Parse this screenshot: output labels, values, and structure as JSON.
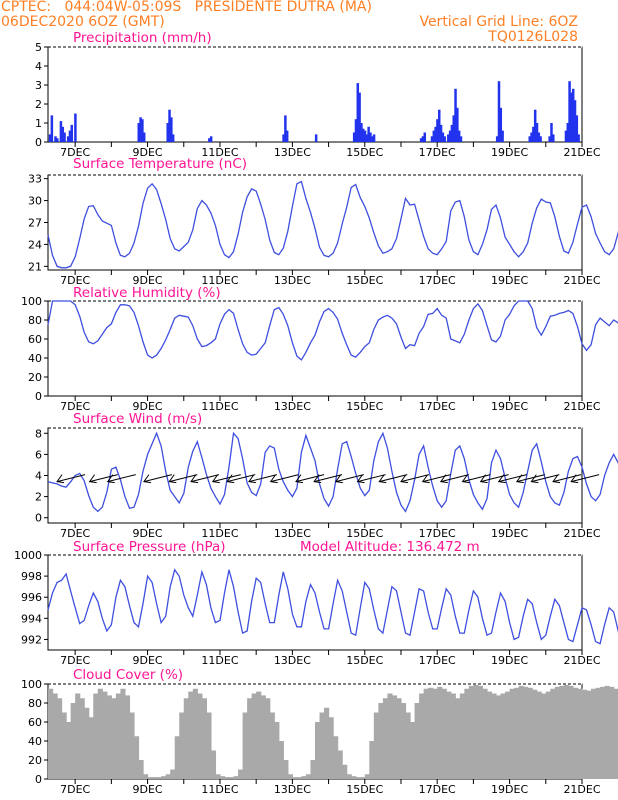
{
  "header": {
    "line1": "CPTEC:   044:04W-05:09S   PRESIDENTE DUTRA (MA)",
    "line2_left": "06DEC2020 6OZ (GMT)",
    "line2_right": "Vertical Grid Line: 6OZ",
    "line3_right": "TQ0126L028"
  },
  "colors": {
    "header": "#ff7f24",
    "title": "#ff1493",
    "line": "#3f4fdf",
    "bar": "#2233ee",
    "cloud": "#a9a9a9"
  },
  "x_labels": [
    "7DEC",
    "9DEC",
    "11DEC",
    "13DEC",
    "15DEC",
    "17DEC",
    "19DEC",
    "21DEC"
  ],
  "chart_data": [
    {
      "type": "bar",
      "title": "Precipitation (mm/h)",
      "ylim": [
        0,
        5
      ],
      "yticks": [
        0,
        1,
        2,
        3,
        4,
        5
      ],
      "x_range_days": [
        6.25,
        21.0
      ],
      "x": [
        6.3,
        6.35,
        6.45,
        6.5,
        6.6,
        6.65,
        6.7,
        6.8,
        6.85,
        6.9,
        7.0,
        8.75,
        8.8,
        8.85,
        8.9,
        9.55,
        9.6,
        9.65,
        9.7,
        10.7,
        10.75,
        12.75,
        12.8,
        12.85,
        13.65,
        14.7,
        14.75,
        14.8,
        14.85,
        14.9,
        14.95,
        15.0,
        15.05,
        15.1,
        15.15,
        15.2,
        15.25,
        16.55,
        16.6,
        16.65,
        16.85,
        16.9,
        16.95,
        17.0,
        17.05,
        17.1,
        17.15,
        17.2,
        17.3,
        17.35,
        17.4,
        17.45,
        17.5,
        17.55,
        17.6,
        17.65,
        18.65,
        18.7,
        18.75,
        18.8,
        19.55,
        19.6,
        19.65,
        19.7,
        19.75,
        19.8,
        19.85,
        20.1,
        20.15,
        20.2,
        20.55,
        20.6,
        20.65,
        20.7,
        20.75,
        20.8,
        20.85,
        20.9
      ],
      "values": [
        0.4,
        1.4,
        0.3,
        0.2,
        1.1,
        0.8,
        0.5,
        0.3,
        0.6,
        0.9,
        1.5,
        1.0,
        1.3,
        1.2,
        0.5,
        1.0,
        1.7,
        1.3,
        0.4,
        0.2,
        0.3,
        0.4,
        1.4,
        0.6,
        0.4,
        0.5,
        1.2,
        3.1,
        2.6,
        1.0,
        0.7,
        0.6,
        0.4,
        0.8,
        0.5,
        0.3,
        0.4,
        0.2,
        0.3,
        0.5,
        0.3,
        0.6,
        0.8,
        1.2,
        1.7,
        0.9,
        0.5,
        0.3,
        0.4,
        0.6,
        0.9,
        1.4,
        2.8,
        1.8,
        0.6,
        0.3,
        0.3,
        3.2,
        1.8,
        0.6,
        0.3,
        0.5,
        0.8,
        1.7,
        1.0,
        0.5,
        0.3,
        0.3,
        1.0,
        0.4,
        0.6,
        1.0,
        3.2,
        2.6,
        2.8,
        2.2,
        1.4,
        0.4
      ]
    },
    {
      "type": "line",
      "title": "Surface Temperature (nC)",
      "ylim": [
        20.5,
        33.5
      ],
      "yticks": [
        21,
        24,
        27,
        30,
        33
      ],
      "x_start_day": 6.25,
      "x_step_days": 0.125,
      "y": [
        25.3,
        22.5,
        21.0,
        20.8,
        20.8,
        21.0,
        22.3,
        24.8,
        27.5,
        29.2,
        29.3,
        28.1,
        27.2,
        26.9,
        26.6,
        24.2,
        22.5,
        22.3,
        22.8,
        24.2,
        26.5,
        29.6,
        31.7,
        32.3,
        31.5,
        29.6,
        27.4,
        24.8,
        23.4,
        23.1,
        23.7,
        24.3,
        26.0,
        28.9,
        30.0,
        29.4,
        28.3,
        26.6,
        24.0,
        22.6,
        22.2,
        23.0,
        25.4,
        28.4,
        30.5,
        31.6,
        31.3,
        29.5,
        27.4,
        24.6,
        22.9,
        22.6,
        23.5,
        25.8,
        29.2,
        32.3,
        32.6,
        30.3,
        28.4,
        26.2,
        23.6,
        22.5,
        22.3,
        22.8,
        24.2,
        26.8,
        29.1,
        31.8,
        32.2,
        30.4,
        29.2,
        27.6,
        25.6,
        23.8,
        22.8,
        23.0,
        23.4,
        24.8,
        27.5,
        30.3,
        29.4,
        29.5,
        27.3,
        25.1,
        23.4,
        22.8,
        22.6,
        23.4,
        24.4,
        28.6,
        29.8,
        30.0,
        27.8,
        24.6,
        23.0,
        22.6,
        24.0,
        26.0,
        28.8,
        29.4,
        27.6,
        25.0,
        24.0,
        23.0,
        22.3,
        23.0,
        24.2,
        26.9,
        29.0,
        30.2,
        29.8,
        29.7,
        27.8,
        25.1,
        23.1,
        22.8,
        24.3,
        26.8,
        29.1,
        29.4,
        27.8,
        25.5,
        24.2,
        23.0,
        22.6,
        23.4,
        25.6,
        28.8,
        30.4,
        30.3,
        27.9,
        25.5,
        23.8,
        23.0,
        23.1,
        24.6,
        27.4,
        29.5,
        29.0,
        28.4,
        26.0,
        24.4,
        23.5,
        23.2,
        24.1,
        26.0,
        28.6,
        29.8,
        28.2,
        26.8,
        25.2,
        23.9,
        23.3,
        23.6,
        24.4,
        27.2,
        29.2,
        28.5,
        27.9,
        26.5
      ]
    },
    {
      "type": "line",
      "title": "Relative Humidity (%)",
      "ylim": [
        0,
        100
      ],
      "yticks": [
        0,
        20,
        40,
        60,
        80,
        100
      ],
      "x_start_day": 6.25,
      "x_step_days": 0.125,
      "y": [
        75,
        100,
        100,
        100,
        100,
        100,
        96,
        84,
        67,
        57,
        55,
        58,
        65,
        72,
        76,
        88,
        96,
        96,
        95,
        88,
        74,
        57,
        43,
        40,
        43,
        50,
        59,
        70,
        82,
        85,
        84,
        83,
        74,
        60,
        52,
        53,
        56,
        60,
        76,
        86,
        91,
        87,
        70,
        55,
        46,
        43,
        44,
        50,
        56,
        74,
        91,
        93,
        86,
        74,
        56,
        42,
        38,
        46,
        56,
        64,
        78,
        89,
        92,
        88,
        81,
        66,
        54,
        43,
        41,
        46,
        52,
        56,
        70,
        80,
        83,
        85,
        82,
        76,
        62,
        50,
        54,
        53,
        66,
        73,
        86,
        87,
        92,
        85,
        82,
        60,
        58,
        56,
        65,
        80,
        92,
        97,
        90,
        74,
        59,
        57,
        63,
        80,
        86,
        95,
        100,
        100,
        100,
        92,
        72,
        64,
        73,
        84,
        85,
        87,
        88,
        90,
        87,
        73,
        55,
        48,
        54,
        75,
        82,
        78,
        74,
        80,
        77,
        83,
        82,
        67,
        48,
        47,
        52,
        70,
        85,
        88,
        79,
        74,
        78,
        77,
        64,
        51,
        52,
        63,
        82,
        80,
        76,
        71,
        58,
        52,
        49,
        55,
        72,
        83,
        82,
        86,
        72,
        65,
        57,
        51,
        58,
        70,
        84,
        83
      ]
    },
    {
      "type": "line",
      "title": "Surface Wind (m/s)",
      "ylim": [
        -0.5,
        8.5
      ],
      "yticks": [
        0,
        2,
        4,
        6,
        8
      ],
      "x_start_day": 6.25,
      "x_step_days": 0.125,
      "y": [
        3.4,
        3.3,
        3.2,
        3.0,
        2.9,
        3.4,
        4.0,
        4.2,
        3.5,
        2.1,
        1.0,
        0.6,
        1.0,
        2.4,
        4.6,
        4.8,
        3.6,
        2.0,
        0.9,
        1.0,
        2.2,
        4.4,
        6.0,
        7.0,
        8.0,
        6.8,
        4.4,
        2.6,
        2.0,
        1.4,
        2.3,
        4.8,
        6.3,
        7.2,
        5.7,
        4.1,
        2.8,
        2.0,
        1.3,
        2.2,
        4.8,
        8.0,
        7.5,
        5.6,
        3.3,
        2.4,
        2.1,
        3.2,
        6.2,
        6.8,
        6.6,
        4.6,
        3.4,
        2.6,
        2.0,
        2.8,
        6.2,
        7.8,
        6.6,
        5.4,
        3.2,
        1.8,
        1.1,
        2.0,
        4.6,
        7.0,
        7.2,
        5.8,
        4.2,
        2.8,
        2.1,
        2.6,
        5.4,
        7.2,
        8.0,
        6.6,
        4.4,
        2.4,
        1.2,
        0.6,
        1.6,
        3.6,
        6.0,
        6.8,
        4.8,
        3.0,
        1.6,
        1.0,
        1.6,
        4.2,
        6.4,
        6.8,
        5.6,
        3.6,
        2.2,
        1.4,
        0.8,
        1.8,
        5.2,
        6.4,
        5.6,
        3.8,
        2.2,
        1.4,
        1.0,
        2.4,
        4.4,
        6.4,
        7.0,
        5.3,
        3.4,
        2.0,
        1.4,
        1.2,
        2.4,
        4.4,
        5.6,
        5.8,
        4.8,
        3.2,
        2.0,
        1.6,
        2.2,
        4.0,
        5.2,
        6.0,
        5.2,
        3.6,
        2.3,
        2.0,
        1.7,
        2.4,
        4.6,
        4.8,
        4.0,
        2.6,
        1.8,
        1.1,
        1.0,
        2.2,
        3.6,
        4.4,
        4.2,
        3.2,
        2.4,
        2.0,
        1.8,
        2.4,
        3.6,
        4.2,
        3.8,
        3.0,
        2.6,
        2.4,
        2.6,
        3.4,
        4.2,
        4.6,
        4.0,
        3.4
      ]
    },
    {
      "type": "line",
      "title": "Surface Pressure (hPa)",
      "subtitle": "Model Altitude: 136.472 m",
      "ylim": [
        991,
        1000
      ],
      "yticks": [
        992,
        994,
        996,
        998,
        1000
      ],
      "x_start_day": 6.25,
      "x_step_days": 0.125,
      "y": [
        994.8,
        996.4,
        997.4,
        997.6,
        998.2,
        996.6,
        995.0,
        993.5,
        993.8,
        995.2,
        996.4,
        995.6,
        994.0,
        992.8,
        993.4,
        996.0,
        997.6,
        997.0,
        995.2,
        993.6,
        993.2,
        995.4,
        998.0,
        997.4,
        995.4,
        993.6,
        994.2,
        997.0,
        998.6,
        998.0,
        996.2,
        995.0,
        994.2,
        996.2,
        998.4,
        997.2,
        995.0,
        993.6,
        993.8,
        996.4,
        998.6,
        997.0,
        994.6,
        992.6,
        992.8,
        995.6,
        997.8,
        997.4,
        995.4,
        993.6,
        993.6,
        996.2,
        998.4,
        996.8,
        994.4,
        993.2,
        993.2,
        995.6,
        997.2,
        996.4,
        994.6,
        993.0,
        993.0,
        995.4,
        997.6,
        996.6,
        994.6,
        992.6,
        992.4,
        995.0,
        997.4,
        996.8,
        994.8,
        993.0,
        992.6,
        994.8,
        997.0,
        996.6,
        994.6,
        992.6,
        992.4,
        994.6,
        996.8,
        996.6,
        994.6,
        993.0,
        993.0,
        995.0,
        996.8,
        996.2,
        994.2,
        992.6,
        992.6,
        994.8,
        996.6,
        996.0,
        994.0,
        992.4,
        992.6,
        994.6,
        996.4,
        995.6,
        993.6,
        992.0,
        992.2,
        994.2,
        995.8,
        995.4,
        993.6,
        992.0,
        992.4,
        994.2,
        995.8,
        995.2,
        993.6,
        992.0,
        991.8,
        993.4,
        995.0,
        994.8,
        993.4,
        991.8,
        991.6,
        993.4,
        995.0,
        994.6,
        992.8,
        991.0,
        991.2,
        993.0,
        994.6,
        994.2,
        992.8,
        991.2,
        991.4,
        993.2,
        994.6,
        993.8,
        992.6,
        991.2,
        991.0,
        992.6,
        993.8,
        993.0,
        991.8,
        990.6,
        990.8,
        992.4,
        993.6,
        992.8,
        991.4,
        990.6,
        990.8,
        992.2,
        993.8,
        993.2,
        992.0,
        991.6,
        992.0,
        993.4
      ]
    },
    {
      "type": "bar",
      "title": "Cloud Cover (%)",
      "ylim": [
        0,
        100
      ],
      "yticks": [
        0,
        20,
        40,
        60,
        80,
        100
      ],
      "x_start_day": 6.25,
      "x_step_days": 0.125,
      "values": [
        95,
        90,
        85,
        70,
        60,
        80,
        90,
        85,
        75,
        65,
        90,
        95,
        92,
        88,
        85,
        90,
        95,
        88,
        70,
        45,
        20,
        5,
        2,
        2,
        2,
        3,
        5,
        10,
        45,
        70,
        85,
        92,
        95,
        90,
        85,
        70,
        30,
        5,
        3,
        2,
        2,
        3,
        10,
        70,
        85,
        90,
        92,
        88,
        85,
        70,
        60,
        40,
        20,
        5,
        2,
        2,
        3,
        5,
        20,
        60,
        70,
        75,
        65,
        45,
        30,
        15,
        5,
        3,
        2,
        2,
        5,
        40,
        70,
        80,
        85,
        90,
        88,
        85,
        80,
        70,
        60,
        80,
        90,
        95,
        96,
        95,
        97,
        95,
        92,
        90,
        85,
        90,
        95,
        98,
        99,
        98,
        95,
        92,
        90,
        88,
        90,
        92,
        95,
        96,
        98,
        97,
        96,
        94,
        92,
        90,
        92,
        95,
        97,
        98,
        99,
        98,
        96,
        95,
        94,
        93,
        95,
        96,
        97,
        98,
        97,
        95,
        93,
        92,
        94,
        96,
        98,
        99,
        98,
        96,
        95,
        96,
        97,
        98,
        97,
        96,
        95,
        94,
        96,
        97,
        98,
        97,
        96,
        95,
        96,
        97,
        98,
        99,
        98,
        97,
        96,
        95,
        97,
        98,
        99
      ]
    }
  ]
}
